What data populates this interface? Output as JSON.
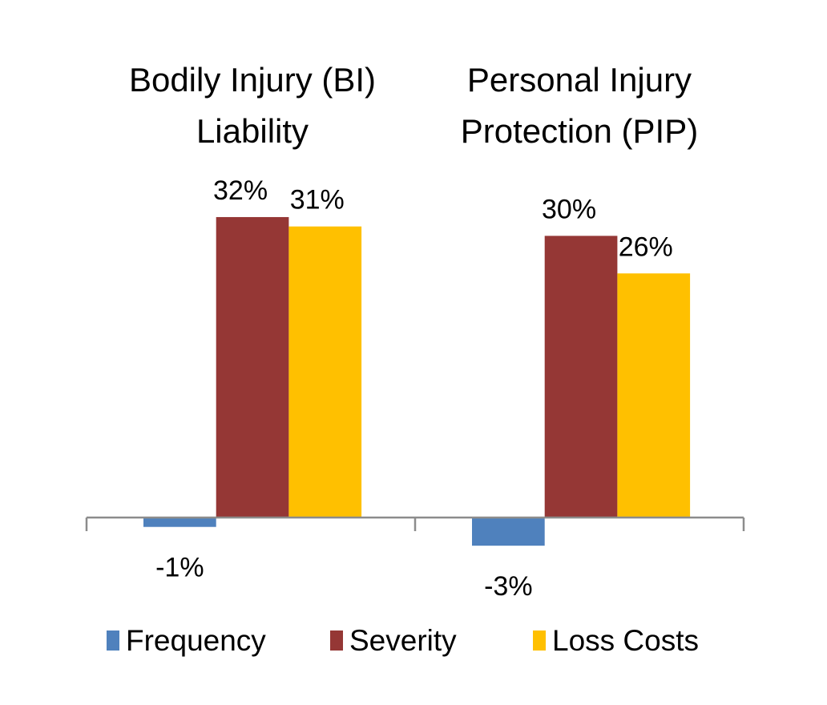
{
  "chart_data": {
    "type": "bar",
    "categories": [
      [
        "Bodily Injury (BI)",
        "Liability"
      ],
      [
        "Personal Injury",
        "Protection (PIP)"
      ]
    ],
    "series": [
      {
        "name": "Frequency",
        "values": [
          -1,
          -3
        ],
        "labels": [
          "-1%",
          "-3%"
        ],
        "color": "#4F81BD"
      },
      {
        "name": "Severity",
        "values": [
          32,
          30
        ],
        "labels": [
          "32%",
          "30%"
        ],
        "color": "#953735"
      },
      {
        "name": "Loss Costs",
        "values": [
          31,
          26
        ],
        "labels": [
          "31%",
          "26%"
        ],
        "color": "#FFC000"
      }
    ],
    "unit": "%",
    "category_label_position": "top",
    "legend_position": "bottom",
    "grid": false,
    "axis_color": "#8C8C8C"
  }
}
